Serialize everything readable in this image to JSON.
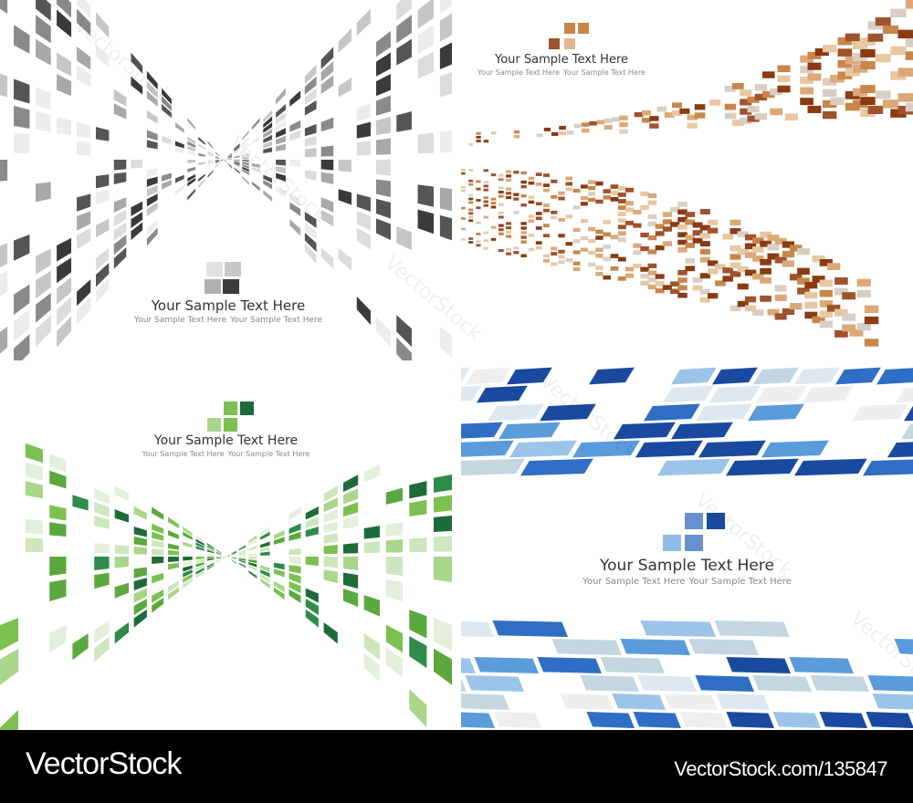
{
  "panels": [
    {
      "id": "gray",
      "title": "Your Sample Text Here",
      "subtitle": [
        "Your Sample Text Here",
        "Your Sample Text Here"
      ],
      "palette": [
        "#3a3a3a",
        "#555555",
        "#8a8a8a",
        "#a8a8a8",
        "#c6c6c6",
        "#dcdcdc",
        "#ececec"
      ]
    },
    {
      "id": "brown",
      "title": "Your Sample Text Here",
      "subtitle": [
        "Your Sample Text Here",
        "Your Sample Text Here"
      ],
      "palette": [
        "#8b3a12",
        "#a0522d",
        "#c8864a",
        "#dba877",
        "#e8c8a0",
        "#d8cfc4"
      ]
    },
    {
      "id": "green",
      "title": "Your Sample Text Here",
      "subtitle": [
        "Your Sample Text Here",
        "Your Sample Text Here"
      ],
      "palette": [
        "#1e6b3a",
        "#2e8b4a",
        "#5aa83e",
        "#7cc150",
        "#a8d68a",
        "#cde6bd",
        "#e4efdc"
      ]
    },
    {
      "id": "blue",
      "title": "Your Sample Text Here",
      "subtitle": [
        "Your Sample Text Here",
        "Your Sample Text Here"
      ],
      "palette": [
        "#1a4aa0",
        "#2f6ec4",
        "#5a9bdc",
        "#9cc4e8",
        "#c4d6e2",
        "#dde8f0",
        "#eeeeee"
      ]
    }
  ],
  "watermark": "VectorStock",
  "footer": {
    "brand": "VectorStock",
    "url": "VectorStock.com/135847"
  }
}
